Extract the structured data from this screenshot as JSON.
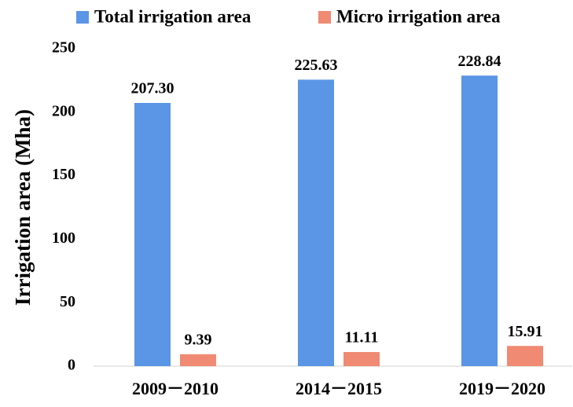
{
  "chart_data": {
    "type": "bar",
    "categories": [
      "2009－2010",
      "2014－2015",
      "2019－2020"
    ],
    "series": [
      {
        "name": "Total irrigation area",
        "color": "#5b95e5",
        "values": [
          207.3,
          225.63,
          228.84
        ],
        "value_labels": [
          "207.30",
          "225.63",
          "228.84"
        ]
      },
      {
        "name": "Micro irrigation area",
        "color": "#f08a72",
        "values": [
          9.39,
          11.11,
          15.91
        ],
        "value_labels": [
          "9.39",
          "11.11",
          "15.91"
        ]
      }
    ],
    "y_label": "Irrigation area (Mha)",
    "ylim": [
      0,
      250
    ],
    "yticks": [
      0,
      50,
      100,
      150,
      200,
      250
    ],
    "grid": false,
    "legend": "top"
  }
}
